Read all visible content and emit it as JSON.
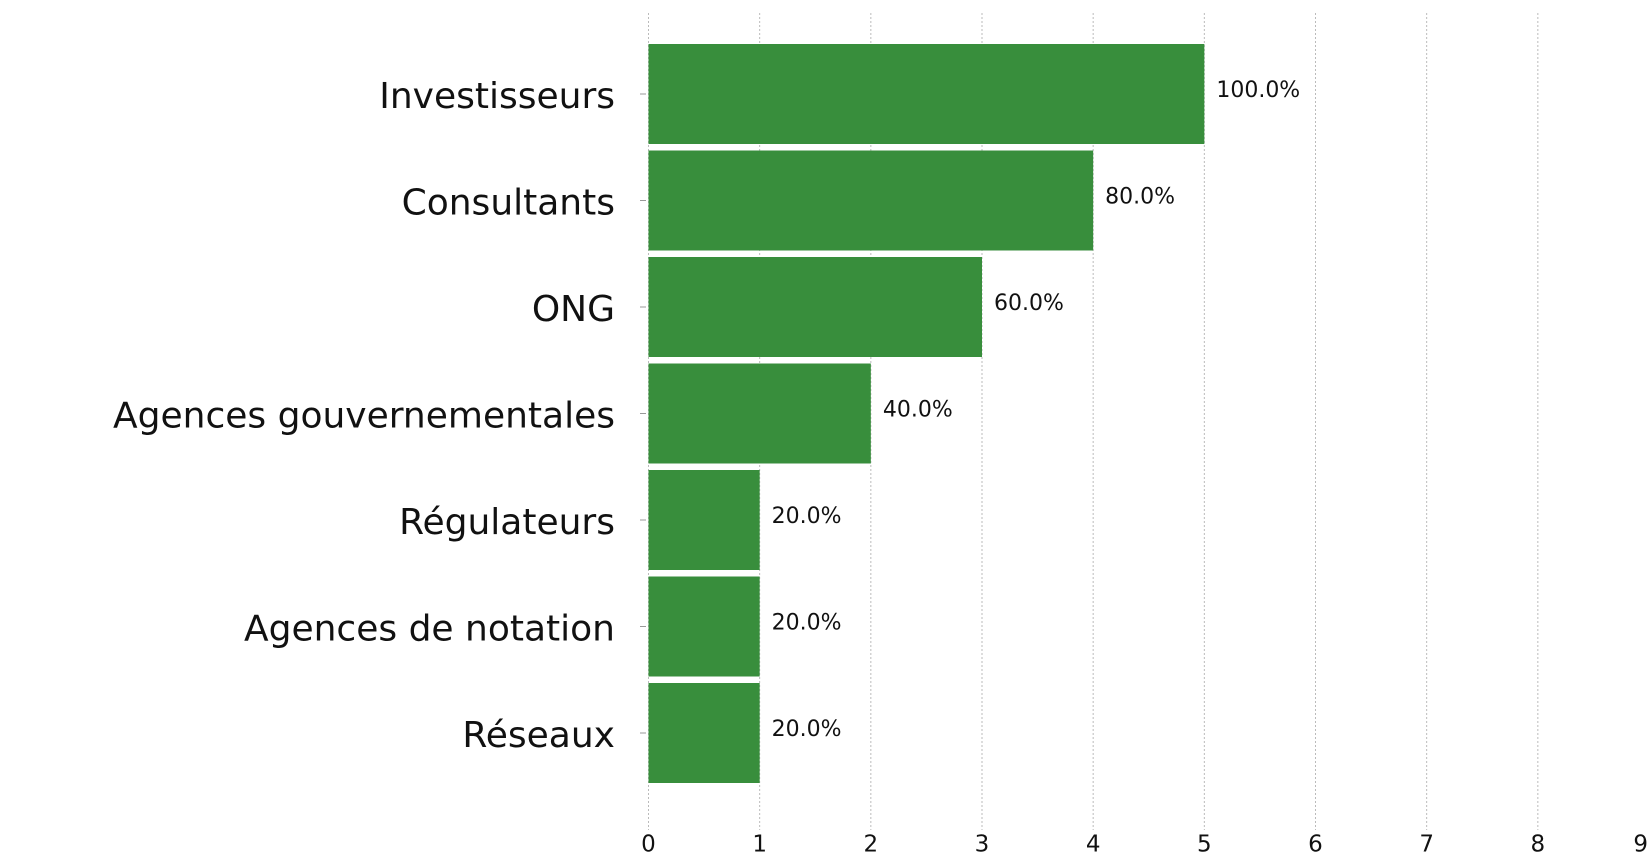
{
  "chart_data": {
    "type": "barh",
    "categories": [
      "Investisseurs",
      "Consultants",
      "ONG",
      "Agences gouvernementales",
      "Régulateurs",
      "Agences de notation",
      "Réseaux"
    ],
    "values": [
      5,
      4,
      3,
      2,
      1,
      1,
      1
    ],
    "value_labels": [
      "100.0%",
      "80.0%",
      "60.0%",
      "40.0%",
      "20.0%",
      "20.0%",
      "20.0%"
    ],
    "color": "#388e3c",
    "xlim": [
      0,
      9
    ],
    "xticks": [
      0,
      1,
      2,
      3,
      4,
      5,
      6,
      7,
      8,
      9
    ],
    "grid": true
  }
}
